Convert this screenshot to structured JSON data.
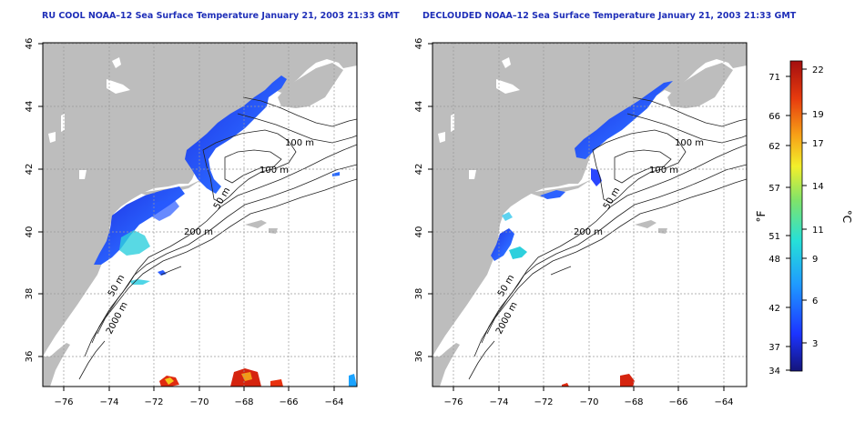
{
  "panels": [
    {
      "title": "RU COOL NOAA–12 Sea Surface Temperature January 21, 2003 21:33 GMT",
      "contour_labels": [
        "100 m",
        "100 m",
        "50 m",
        "200 m",
        "50 m",
        "2000 m"
      ]
    },
    {
      "title": "DECLOUDED NOAA–12 Sea Surface Temperature January 21, 2003 21:33 GMT",
      "contour_labels": [
        "100 m",
        "100 m",
        "50 m",
        "200 m",
        "50 m",
        "2000 m"
      ]
    }
  ],
  "axes": {
    "x_ticks": [
      "−76",
      "−74",
      "−72",
      "−70",
      "−68",
      "−66",
      "−64"
    ],
    "y_ticks": [
      "36",
      "38",
      "40",
      "42",
      "44",
      "46"
    ],
    "lon_range": [
      -77,
      -63
    ],
    "lat_range": [
      35,
      46
    ],
    "grid": true
  },
  "colorbar": {
    "f_ticks": [
      "71",
      "66",
      "62",
      "57",
      "51",
      "48",
      "42",
      "37",
      "34"
    ],
    "c_ticks": [
      "22",
      "19",
      "17",
      "14",
      "11",
      "9",
      "6",
      "3"
    ],
    "f_unit": "°F",
    "c_unit": "°C",
    "range_c": [
      1,
      23
    ],
    "colors": [
      "#14147a",
      "#1c34ff",
      "#1f9bff",
      "#26e0d8",
      "#7fe36a",
      "#f3ef2b",
      "#f7a117",
      "#e63a0e",
      "#a40f0f"
    ]
  },
  "colors": {
    "land": "#bdbdbd",
    "water": "#ffffff",
    "grid": "#9a9a9a"
  }
}
